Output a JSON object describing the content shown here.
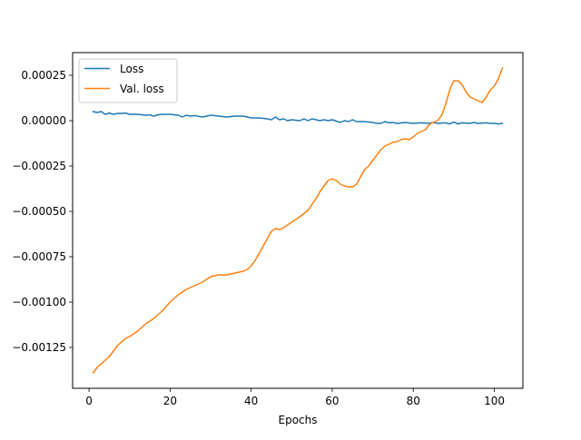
{
  "chart_data": {
    "type": "line",
    "title": "",
    "xlabel": "Epochs",
    "ylabel": "",
    "xlim": [
      -4.05,
      107.05
    ],
    "ylim": [
      -0.001475,
      0.000375
    ],
    "xticks": [
      0,
      20,
      40,
      60,
      80,
      100
    ],
    "yticks": [
      -0.00125,
      -0.001,
      -0.00075,
      -0.0005,
      -0.00025,
      0.0,
      0.00025
    ],
    "ytick_labels": [
      "−0.00125",
      "−0.00100",
      "−0.00075",
      "−0.00050",
      "−0.00025",
      "0.00000",
      "0.00025"
    ],
    "grid": false,
    "legend_position": "top-left",
    "series": [
      {
        "name": "Loss",
        "color": "#1f77b4",
        "points": [
          [
            1,
            5e-05
          ],
          [
            2,
            4.5e-05
          ],
          [
            3,
            5e-05
          ],
          [
            4,
            3.5e-05
          ],
          [
            5,
            4.2e-05
          ],
          [
            6,
            3.5e-05
          ],
          [
            7,
            4e-05
          ],
          [
            8,
            4e-05
          ],
          [
            9,
            4.2e-05
          ],
          [
            10,
            3.5e-05
          ],
          [
            12,
            3.5e-05
          ],
          [
            14,
            3e-05
          ],
          [
            15,
            3.2e-05
          ],
          [
            16,
            2.5e-05
          ],
          [
            17,
            3.2e-05
          ],
          [
            18,
            3.5e-05
          ],
          [
            20,
            3.5e-05
          ],
          [
            22,
            3e-05
          ],
          [
            23,
            2e-05
          ],
          [
            24,
            3e-05
          ],
          [
            25,
            2.5e-05
          ],
          [
            26,
            2.8e-05
          ],
          [
            28,
            2e-05
          ],
          [
            30,
            3e-05
          ],
          [
            32,
            2.5e-05
          ],
          [
            34,
            2e-05
          ],
          [
            36,
            2.5e-05
          ],
          [
            38,
            2.5e-05
          ],
          [
            39,
            2e-05
          ],
          [
            40,
            1.5e-05
          ],
          [
            42,
            1.5e-05
          ],
          [
            44,
            1e-05
          ],
          [
            45,
            5e-06
          ],
          [
            46,
            2e-05
          ],
          [
            47,
            5e-06
          ],
          [
            48,
            1e-05
          ],
          [
            49,
            0.0
          ],
          [
            50,
            5e-06
          ],
          [
            52,
            0.0
          ],
          [
            53,
            1e-05
          ],
          [
            54,
            0.0
          ],
          [
            55,
            1e-05
          ],
          [
            56,
            5e-06
          ],
          [
            57,
            0.0
          ],
          [
            58,
            5e-06
          ],
          [
            59,
            0.0
          ],
          [
            60,
            5e-06
          ],
          [
            62,
            -1e-05
          ],
          [
            63,
            0.0
          ],
          [
            64,
            -5e-06
          ],
          [
            65,
            5e-06
          ],
          [
            66,
            -5e-06
          ],
          [
            68,
            -5e-06
          ],
          [
            70,
            -1e-05
          ],
          [
            71,
            -1.5e-05
          ],
          [
            72,
            -1.5e-05
          ],
          [
            73,
            -5e-06
          ],
          [
            74,
            -1.2e-05
          ],
          [
            75,
            -1e-05
          ],
          [
            76,
            -1.5e-05
          ],
          [
            78,
            -1e-05
          ],
          [
            80,
            -1.5e-05
          ],
          [
            82,
            -1.2e-05
          ],
          [
            84,
            -1.5e-05
          ],
          [
            85,
            -1e-05
          ],
          [
            86,
            -1.5e-05
          ],
          [
            88,
            -1.2e-05
          ],
          [
            89,
            -1.8e-05
          ],
          [
            90,
            -8e-06
          ],
          [
            91,
            -1.8e-05
          ],
          [
            92,
            -1.2e-05
          ],
          [
            94,
            -1.5e-05
          ],
          [
            95,
            -1e-05
          ],
          [
            96,
            -1.5e-05
          ],
          [
            98,
            -1.2e-05
          ],
          [
            99,
            -1.5e-05
          ],
          [
            100,
            -1.5e-05
          ],
          [
            101,
            -1.8e-05
          ],
          [
            102,
            -1.5e-05
          ]
        ]
      },
      {
        "name": "Val. loss",
        "color": "#ff7f0e",
        "points": [
          [
            1,
            -0.00139
          ],
          [
            2,
            -0.00136
          ],
          [
            3,
            -0.00134
          ],
          [
            4,
            -0.00132
          ],
          [
            5,
            -0.0013
          ],
          [
            6,
            -0.00127
          ],
          [
            7,
            -0.00124
          ],
          [
            8,
            -0.00122
          ],
          [
            9,
            -0.0012
          ],
          [
            10,
            -0.00119
          ],
          [
            12,
            -0.00116
          ],
          [
            14,
            -0.00112
          ],
          [
            16,
            -0.00109
          ],
          [
            18,
            -0.00105
          ],
          [
            20,
            -0.001
          ],
          [
            22,
            -0.00096
          ],
          [
            24,
            -0.00093
          ],
          [
            26,
            -0.00091
          ],
          [
            28,
            -0.00089
          ],
          [
            30,
            -0.00086
          ],
          [
            32,
            -0.00085
          ],
          [
            34,
            -0.00085
          ],
          [
            36,
            -0.00084
          ],
          [
            38,
            -0.00083
          ],
          [
            39,
            -0.00082
          ],
          [
            40,
            -0.0008
          ],
          [
            41,
            -0.00077
          ],
          [
            42,
            -0.00073
          ],
          [
            43,
            -0.00069
          ],
          [
            44,
            -0.00065
          ],
          [
            45,
            -0.00061
          ],
          [
            46,
            -0.000595
          ],
          [
            47,
            -0.0006
          ],
          [
            48,
            -0.00059
          ],
          [
            50,
            -0.00056
          ],
          [
            52,
            -0.00053
          ],
          [
            54,
            -0.000495
          ],
          [
            56,
            -0.00043
          ],
          [
            57,
            -0.00039
          ],
          [
            58,
            -0.00036
          ],
          [
            59,
            -0.00033
          ],
          [
            60,
            -0.00032
          ],
          [
            61,
            -0.00033
          ],
          [
            62,
            -0.00035
          ],
          [
            63,
            -0.00036
          ],
          [
            64,
            -0.000365
          ],
          [
            65,
            -0.000365
          ],
          [
            66,
            -0.00035
          ],
          [
            67,
            -0.00031
          ],
          [
            68,
            -0.00027
          ],
          [
            69,
            -0.00025
          ],
          [
            70,
            -0.00022
          ],
          [
            71,
            -0.00019
          ],
          [
            72,
            -0.00016
          ],
          [
            73,
            -0.00014
          ],
          [
            74,
            -0.00013
          ],
          [
            75,
            -0.00012
          ],
          [
            76,
            -0.000115
          ],
          [
            77,
            -0.000105
          ],
          [
            78,
            -0.0001
          ],
          [
            79,
            -0.000105
          ],
          [
            80,
            -9e-05
          ],
          [
            81,
            -7e-05
          ],
          [
            82,
            -6e-05
          ],
          [
            83,
            -5e-05
          ],
          [
            84,
            -2e-05
          ],
          [
            85,
            -1e-05
          ],
          [
            86,
            0.0
          ],
          [
            87,
            3e-05
          ],
          [
            88,
            9e-05
          ],
          [
            89,
            0.00017
          ],
          [
            90,
            0.00022
          ],
          [
            91,
            0.00022
          ],
          [
            92,
            0.0002
          ],
          [
            93,
            0.00016
          ],
          [
            94,
            0.00013
          ],
          [
            95,
            0.00012
          ],
          [
            96,
            0.00011
          ],
          [
            97,
            0.0001
          ],
          [
            98,
            0.00013
          ],
          [
            99,
            0.00017
          ],
          [
            100,
            0.00019
          ],
          [
            101,
            0.00023
          ],
          [
            102,
            0.00029
          ]
        ]
      }
    ]
  }
}
